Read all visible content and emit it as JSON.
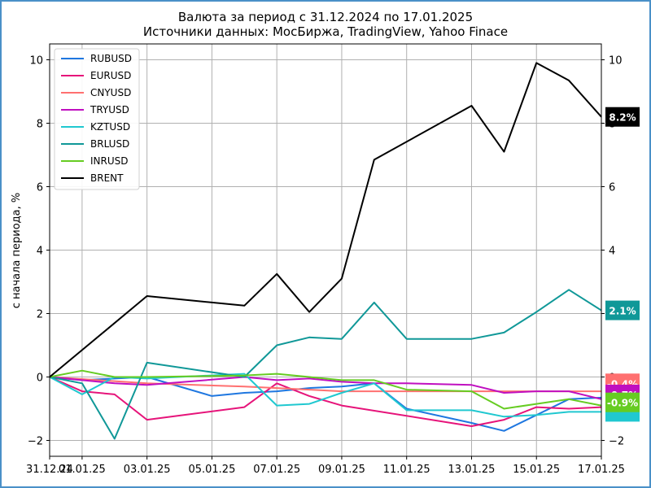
{
  "chart_data": {
    "type": "line",
    "title": "Валюта за период с 31.12.2024 по 17.01.2025",
    "subtitle": "Источники данных: МосБиржа, TradingView, Yahoo Finace",
    "ylabel": "с начала периода, %",
    "xlabel": "",
    "ylim": [
      -2.5,
      10.5
    ],
    "xlim": [
      0,
      17
    ],
    "yticks": [
      -2,
      0,
      2,
      4,
      6,
      8,
      10
    ],
    "ytick_labels": [
      "−2",
      "0",
      "2",
      "4",
      "6",
      "8",
      "10"
    ],
    "xticks": [
      0,
      1,
      3,
      5,
      7,
      9,
      11,
      13,
      15,
      17
    ],
    "xtick_labels": [
      "31.12.24",
      "01.01.25",
      "03.01.25",
      "05.01.25",
      "07.01.25",
      "09.01.25",
      "11.01.25",
      "13.01.25",
      "15.01.25",
      "17.01.25"
    ],
    "grid": true,
    "legend_position": "top-left",
    "series": [
      {
        "name": "RUBUSD",
        "color": "#1f77e0",
        "x": [
          0,
          1,
          2,
          3,
          5,
          6,
          7,
          8,
          9,
          10,
          11,
          13,
          14,
          15,
          16,
          17
        ],
        "values": [
          0,
          -0.1,
          -0.05,
          0,
          -0.6,
          -0.5,
          -0.45,
          -0.35,
          -0.3,
          -0.2,
          -1.0,
          -1.45,
          -1.7,
          -1.2,
          -0.7,
          -0.65
        ]
      },
      {
        "name": "EURUSD",
        "color": "#e6147a",
        "x": [
          0,
          1,
          2,
          3,
          6,
          7,
          8,
          9,
          13,
          14,
          15,
          16,
          17
        ],
        "values": [
          0,
          -0.45,
          -0.55,
          -1.35,
          -0.95,
          -0.2,
          -0.6,
          -0.9,
          -1.55,
          -1.35,
          -0.95,
          -1.0,
          -0.95
        ]
      },
      {
        "name": "CNYUSD",
        "color": "#ff7070",
        "x": [
          0,
          3,
          6,
          7,
          8,
          9,
          10,
          11,
          13,
          14,
          15,
          16,
          17
        ],
        "values": [
          0,
          -0.2,
          -0.3,
          -0.35,
          -0.4,
          -0.45,
          -0.45,
          -0.45,
          -0.45,
          -0.45,
          -0.45,
          -0.45,
          -0.45
        ]
      },
      {
        "name": "TRYUSD",
        "color": "#c010c0",
        "x": [
          0,
          1,
          2,
          3,
          6,
          7,
          8,
          9,
          10,
          11,
          13,
          14,
          15,
          16,
          17
        ],
        "values": [
          0,
          -0.1,
          -0.2,
          -0.25,
          0,
          -0.1,
          -0.05,
          -0.15,
          -0.2,
          -0.2,
          -0.25,
          -0.5,
          -0.45,
          -0.45,
          -0.7
        ]
      },
      {
        "name": "KZTUSD",
        "color": "#20c8d0",
        "x": [
          0,
          1,
          2,
          3,
          6,
          7,
          8,
          9,
          10,
          11,
          13,
          14,
          15,
          16,
          17
        ],
        "values": [
          0,
          -0.55,
          0,
          -0.05,
          0.1,
          -0.9,
          -0.85,
          -0.5,
          -0.2,
          -1.05,
          -1.05,
          -1.25,
          -1.2,
          -1.1,
          -1.1
        ]
      },
      {
        "name": "BRLUSD",
        "color": "#109898",
        "x": [
          0,
          1,
          2,
          3,
          6,
          7,
          8,
          9,
          10,
          11,
          13,
          14,
          15,
          16,
          17
        ],
        "values": [
          0,
          -0.2,
          -1.95,
          0.45,
          0,
          1.0,
          1.25,
          1.2,
          2.35,
          1.2,
          1.2,
          1.4,
          2.05,
          2.75,
          2.1
        ]
      },
      {
        "name": "INRUSD",
        "color": "#66cc22",
        "x": [
          0,
          1,
          2,
          3,
          6,
          7,
          8,
          9,
          10,
          11,
          13,
          14,
          15,
          16,
          17
        ],
        "values": [
          0,
          0.2,
          0,
          0,
          0.05,
          0.1,
          0,
          -0.1,
          -0.1,
          -0.4,
          -0.45,
          -1.0,
          -0.85,
          -0.7,
          -0.9
        ]
      },
      {
        "name": "BRENT",
        "color": "#000000",
        "x": [
          0,
          2,
          3,
          6,
          7,
          8,
          9,
          10,
          13,
          14,
          15,
          16,
          17
        ],
        "values": [
          0,
          1.7,
          2.55,
          2.25,
          3.25,
          2.05,
          3.1,
          6.85,
          8.55,
          7.1,
          9.9,
          9.35,
          8.2
        ]
      }
    ],
    "end_tags": [
      {
        "label": "8.2%",
        "value": 8.2,
        "color": "#000000"
      },
      {
        "label": "2.1%",
        "value": 2.1,
        "color": "#109898"
      },
      {
        "label": "-0.4%",
        "value": -0.2,
        "color": "#ff7070"
      },
      {
        "label": "-0.7%",
        "value": -0.55,
        "color": "#c010c0"
      },
      {
        "label": "",
        "value": -1.1,
        "color": "#20c8d0"
      },
      {
        "label": "-0.9%",
        "value": -0.8,
        "color": "#66cc22"
      }
    ]
  }
}
